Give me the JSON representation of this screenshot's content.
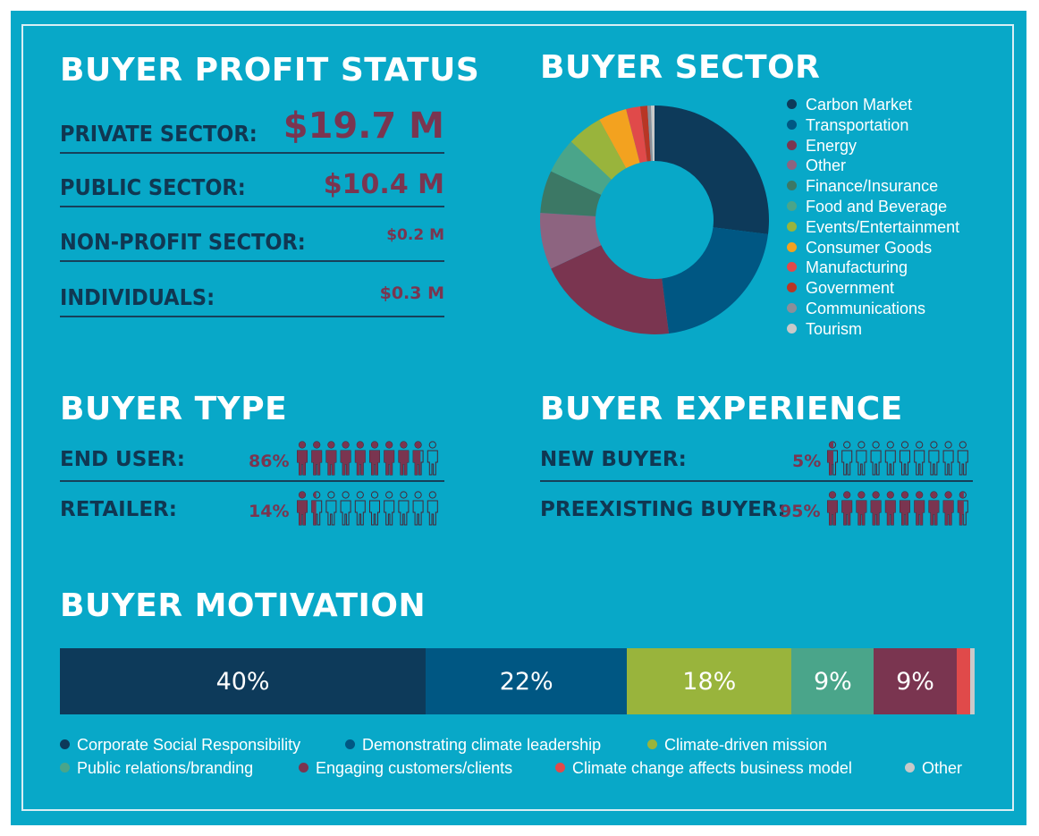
{
  "profit": {
    "title": "BUYER PROFIT STATUS",
    "rows": [
      {
        "label": "PRIVATE SECTOR:",
        "value": "$19.7 M"
      },
      {
        "label": "PUBLIC SECTOR:",
        "value": "$10.4 M"
      },
      {
        "label": "NON-PROFIT SECTOR:",
        "value": "$0.2 M"
      },
      {
        "label": "INDIVIDUALS:",
        "value": "$0.3 M"
      }
    ]
  },
  "sector": {
    "title": "BUYER SECTOR"
  },
  "buyer_type": {
    "title": "BUYER TYPE",
    "rows": [
      {
        "label": "END USER:",
        "pct": "86%",
        "filled": 8.6
      },
      {
        "label": "RETAILER:",
        "pct": "14%",
        "filled": 1.4
      }
    ]
  },
  "experience": {
    "title": "BUYER EXPERIENCE",
    "rows": [
      {
        "label": "NEW BUYER:",
        "pct": "5%",
        "filled": 0.5
      },
      {
        "label": "PREEXISTING BUYER:",
        "pct": "95%",
        "filled": 9.5
      }
    ]
  },
  "motivation": {
    "title": "BUYER MOTIVATION"
  },
  "colors": {
    "background": "#08a8c8",
    "heading_text": "#ffffff",
    "label_text": "#103752",
    "value_text": "#7a3550",
    "person_filled": "#7a3550",
    "person_outline": "#4a2535"
  },
  "chart_data": [
    {
      "type": "pie",
      "title": "BUYER SECTOR",
      "donut": true,
      "legend_position": "right",
      "slices": [
        {
          "label": "Carbon Market",
          "value": 27,
          "color": "#0d3a5a"
        },
        {
          "label": "Transportation",
          "value": 21,
          "color": "#005783"
        },
        {
          "label": "Energy",
          "value": 20,
          "color": "#7a3550"
        },
        {
          "label": "Other",
          "value": 8,
          "color": "#8d6480"
        },
        {
          "label": "Finance/Insurance",
          "value": 6,
          "color": "#3c7865"
        },
        {
          "label": "Food and Beverage",
          "value": 5,
          "color": "#4aa58a"
        },
        {
          "label": "Events/Entertainment",
          "value": 5,
          "color": "#99b43c"
        },
        {
          "label": "Consumer Goods",
          "value": 4,
          "color": "#f3a21f"
        },
        {
          "label": "Manufacturing",
          "value": 2,
          "color": "#e04a4a"
        },
        {
          "label": "Government",
          "value": 1,
          "color": "#b83625"
        },
        {
          "label": "Communications",
          "value": 0.5,
          "color": "#8b8f99"
        },
        {
          "label": "Tourism",
          "value": 0.5,
          "color": "#c9c9c9"
        }
      ]
    },
    {
      "type": "bar",
      "subtype": "stacked-100",
      "title": "BUYER MOTIVATION",
      "legend_position": "bottom",
      "segments": [
        {
          "label": "Corporate Social Responsibility",
          "value": 40,
          "display": "40%",
          "color": "#0d3a5a"
        },
        {
          "label": "Demonstrating climate leadership",
          "value": 22,
          "display": "22%",
          "color": "#005783"
        },
        {
          "label": "Climate-driven mission",
          "value": 18,
          "display": "18%",
          "color": "#99b43c"
        },
        {
          "label": "Public relations/branding",
          "value": 9,
          "display": "9%",
          "color": "#4aa58a"
        },
        {
          "label": "Engaging customers/clients",
          "value": 9,
          "display": "9%",
          "color": "#7a3550"
        },
        {
          "label": "Climate change affects business model",
          "value": 1.5,
          "display": "",
          "color": "#e04a4a"
        },
        {
          "label": "Other",
          "value": 0.5,
          "display": "",
          "color": "#c9c9c9"
        }
      ]
    }
  ]
}
